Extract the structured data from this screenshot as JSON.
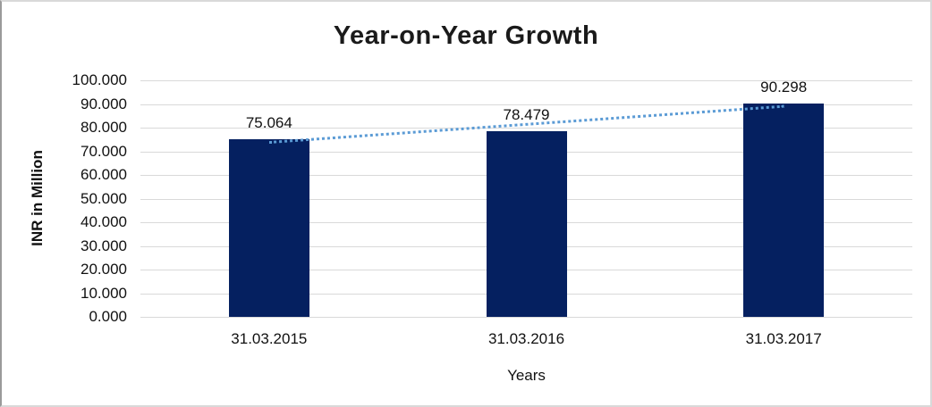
{
  "frame": {
    "background": "#ffffff",
    "border_color": "#d9d9d9"
  },
  "chart_data": {
    "type": "bar",
    "title": "Year-on-Year Growth",
    "categories": [
      "31.03.2015",
      "31.03.2016",
      "31.03.2017"
    ],
    "values": [
      75.064,
      78.479,
      90.298
    ],
    "data_labels": [
      "75.064",
      "78.479",
      "90.298"
    ],
    "xlabel": "Years",
    "ylabel": "INR in Million",
    "ylim": [
      0,
      100
    ],
    "ytick_step": 10,
    "ytick_labels": [
      "0.000",
      "10.000",
      "20.000",
      "30.000",
      "40.000",
      "50.000",
      "60.000",
      "70.000",
      "80.000",
      "90.000",
      "100.000"
    ],
    "grid": true,
    "legend": "none",
    "bar_color": "#052060",
    "gridline_color": "#d9d9d9",
    "trendline": {
      "type": "linear",
      "line_style": "dotted",
      "color": "#5b9bd5"
    }
  }
}
